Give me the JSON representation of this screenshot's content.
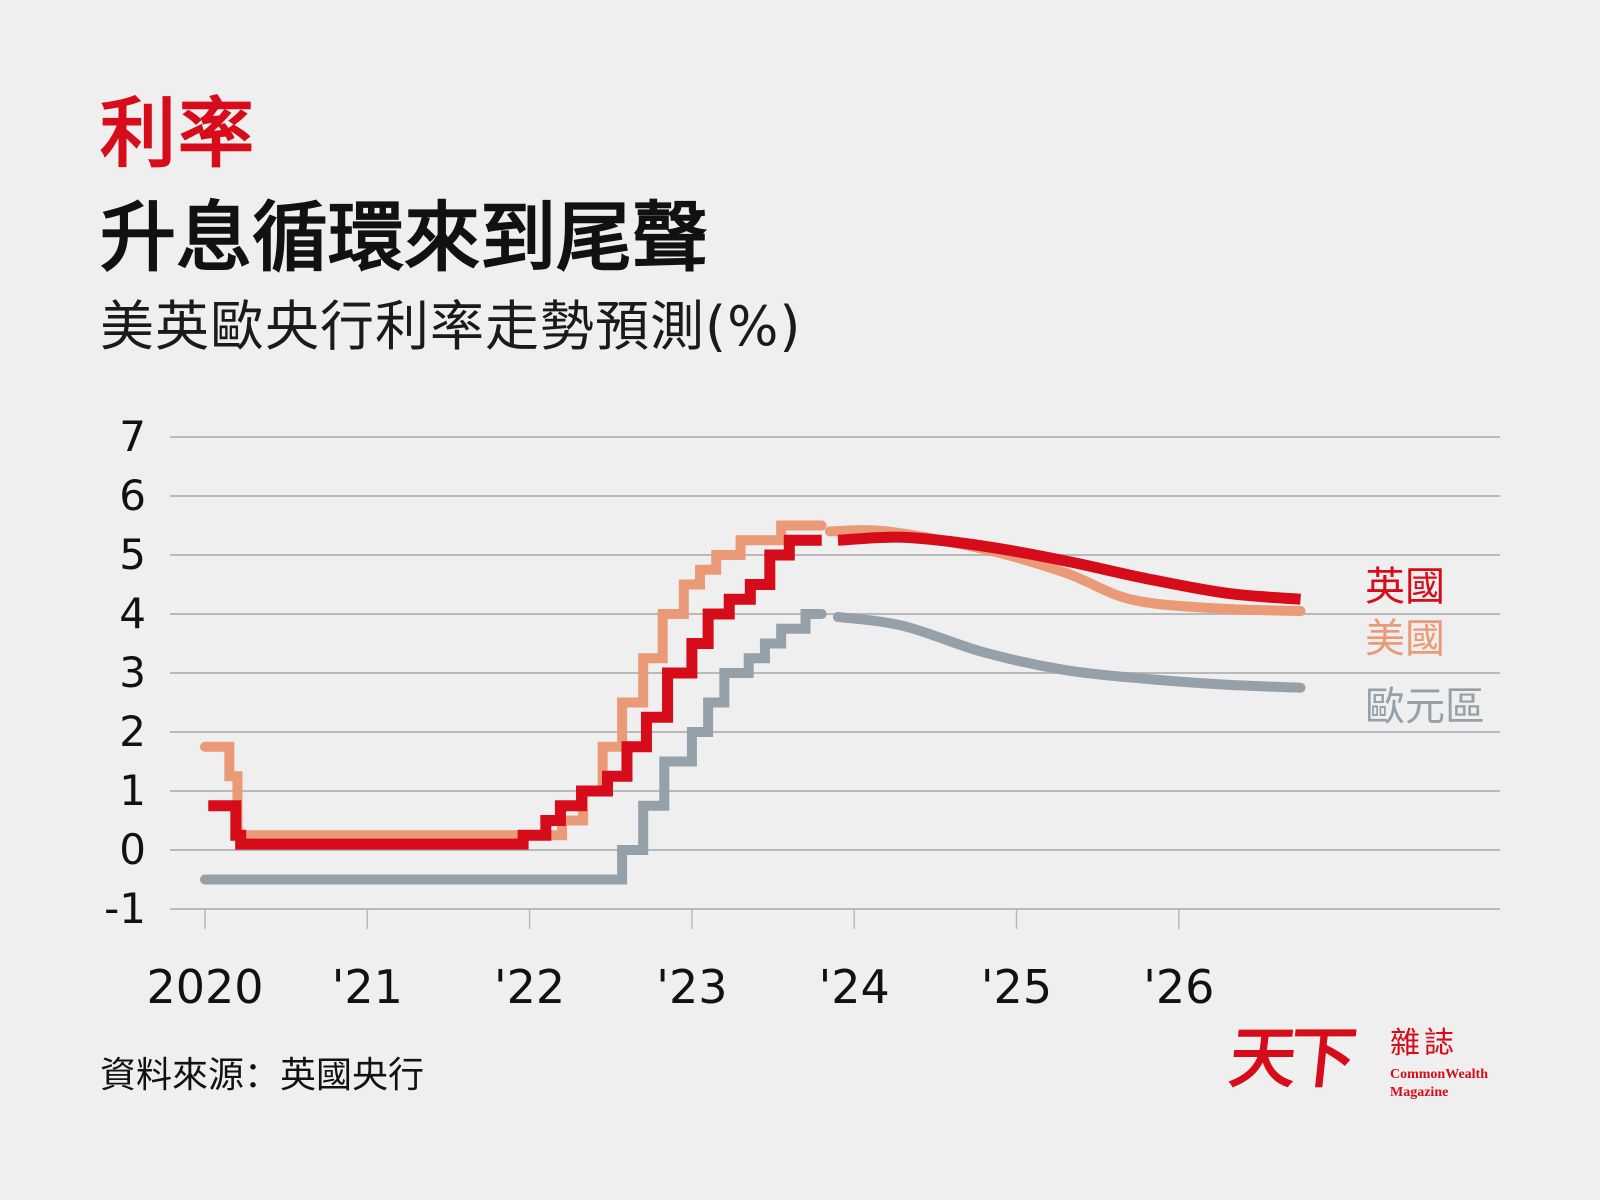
{
  "header": {
    "kicker": "利率",
    "headline": "升息循環來到尾聲",
    "subtitle": "美英歐央行利率走勢預測(%)"
  },
  "colors": {
    "accent_red": "#d60c1a",
    "uk": "#d60c1a",
    "us": "#eb9a78",
    "eurozone": "#95a0a8",
    "grid": "#b9b9b9",
    "background": "#efefef",
    "text": "#111111"
  },
  "footer": {
    "source": "資料來源：英國央行",
    "logo": {
      "mark": "天下",
      "zh": "雜誌",
      "en_line1": "CommonWealth",
      "en_line2": "Magazine"
    }
  },
  "legend": [
    {
      "name": "英國",
      "color": "#d60c1a"
    },
    {
      "name": "美國",
      "color": "#eb9a78"
    },
    {
      "name": "歐元區",
      "color": "#95a0a8"
    }
  ],
  "chart_data": {
    "type": "line",
    "title": "升息循環來到尾聲",
    "subtitle": "美英歐央行利率走勢預測(%)",
    "xlabel": "",
    "ylabel": "%",
    "ylim": [
      -1,
      7
    ],
    "yticks": [
      7,
      6,
      5,
      4,
      3,
      2,
      1,
      0,
      -1
    ],
    "xticks": [
      "2020",
      "'21",
      "'22",
      "'23",
      "'24",
      "'25",
      "'26"
    ],
    "xlim": [
      2020.0,
      2027.8
    ],
    "grid": true,
    "legend_position": "right-inline",
    "source": "英國央行",
    "series": [
      {
        "name": "英國",
        "color": "#d60c1a",
        "step": true,
        "x": [
          2020.02,
          2020.19,
          2020.22,
          2021.96,
          2022.1,
          2022.19,
          2022.32,
          2022.48,
          2022.6,
          2022.72,
          2022.85,
          2023.0,
          2023.1,
          2023.23,
          2023.36,
          2023.48,
          2023.6,
          2023.8
        ],
        "values": [
          0.75,
          0.25,
          0.1,
          0.25,
          0.5,
          0.75,
          1.0,
          1.25,
          1.75,
          2.25,
          3.0,
          3.5,
          4.0,
          4.25,
          4.5,
          5.0,
          5.25,
          5.25
        ],
        "forecast": {
          "x": [
            2023.9,
            2024.3,
            2024.8,
            2025.3,
            2025.8,
            2026.3,
            2026.75
          ],
          "values": [
            5.25,
            5.3,
            5.15,
            4.9,
            4.6,
            4.35,
            4.25
          ]
        }
      },
      {
        "name": "美國",
        "color": "#eb9a78",
        "step": true,
        "x": [
          2020.0,
          2020.15,
          2020.2,
          2022.2,
          2022.33,
          2022.45,
          2022.57,
          2022.7,
          2022.82,
          2022.95,
          2023.05,
          2023.15,
          2023.3,
          2023.55,
          2023.8
        ],
        "values": [
          1.75,
          1.25,
          0.25,
          0.5,
          1.0,
          1.75,
          2.5,
          3.25,
          4.0,
          4.5,
          4.75,
          5.0,
          5.25,
          5.5,
          5.5
        ],
        "forecast": {
          "x": [
            2023.85,
            2024.2,
            2024.8,
            2025.3,
            2025.7,
            2026.2,
            2026.75
          ],
          "values": [
            5.4,
            5.4,
            5.1,
            4.7,
            4.25,
            4.1,
            4.05
          ]
        }
      },
      {
        "name": "歐元區",
        "color": "#95a0a8",
        "step": true,
        "x": [
          2020.0,
          2022.57,
          2022.7,
          2022.83,
          2023.0,
          2023.1,
          2023.2,
          2023.35,
          2023.45,
          2023.55,
          2023.7,
          2023.8
        ],
        "values": [
          -0.5,
          0.0,
          0.75,
          1.5,
          2.0,
          2.5,
          3.0,
          3.25,
          3.5,
          3.75,
          4.0,
          4.0
        ],
        "forecast": {
          "x": [
            2023.9,
            2024.3,
            2024.8,
            2025.3,
            2025.8,
            2026.3,
            2026.75
          ],
          "values": [
            3.95,
            3.8,
            3.35,
            3.05,
            2.9,
            2.8,
            2.75
          ]
        }
      }
    ]
  }
}
